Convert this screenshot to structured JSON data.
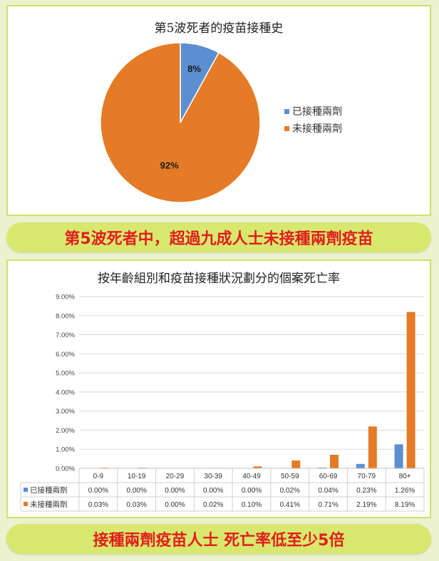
{
  "chart_data": [
    {
      "type": "pie",
      "title": "第5波死者的疫苗接種史",
      "labels": [
        "已接種兩劑",
        "未接種兩劑"
      ],
      "values": [
        8,
        92
      ],
      "value_labels": [
        "8%",
        "92%"
      ],
      "colors": [
        "#5b8fd1",
        "#e57b26"
      ],
      "legend_position": "right"
    },
    {
      "type": "bar",
      "title": "按年齡組別和疫苗接種狀況劃分的個案死亡率",
      "categories": [
        "0-9",
        "10-19",
        "20-29",
        "30-39",
        "40-49",
        "50-59",
        "60-69",
        "70-79",
        "80+"
      ],
      "series": [
        {
          "name": "已接種兩劑",
          "values": [
            0.0,
            0.0,
            0.0,
            0.0,
            0.0,
            0.02,
            0.04,
            0.23,
            1.26
          ],
          "labels": [
            "0.00%",
            "0.00%",
            "0.00%",
            "0.00%",
            "0.00%",
            "0.02%",
            "0.04%",
            "0.23%",
            "1.26%"
          ],
          "color": "#5b8fd1"
        },
        {
          "name": "未接種兩劑",
          "values": [
            0.03,
            0.03,
            0.0,
            0.02,
            0.1,
            0.41,
            0.71,
            2.19,
            8.19
          ],
          "labels": [
            "0.03%",
            "0.03%",
            "0.00%",
            "0.02%",
            "0.10%",
            "0.41%",
            "0.71%",
            "2.19%",
            "8.19%"
          ],
          "color": "#e57b26"
        }
      ],
      "ylim": [
        0,
        9
      ],
      "yticks": [
        "0.00%",
        "1.00%",
        "2.00%",
        "3.00%",
        "4.00%",
        "5.00%",
        "6.00%",
        "7.00%",
        "8.00%",
        "9.00%"
      ],
      "grid": true,
      "legend_position": "data-table"
    }
  ],
  "banners": {
    "top": "第5波死者中，超過九成人士未接種兩劑疫苗",
    "bottom": "接種兩劑疫苗人士 死亡率低至少5倍"
  }
}
